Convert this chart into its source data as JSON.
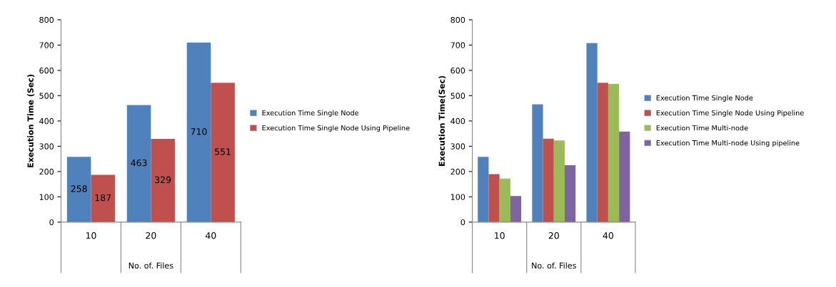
{
  "chart_data": [
    {
      "type": "bar",
      "xlabel": "No. of. Files",
      "ylabel": "Execution Time (Sec)",
      "categories": [
        "10",
        "20",
        "40"
      ],
      "series": [
        {
          "name": "Execution Time Single Node",
          "color": "#4f81bd",
          "values": [
            258,
            463,
            710
          ]
        },
        {
          "name": "Execution Time Single Node Using Pipeline",
          "color": "#c0504d",
          "values": [
            187,
            329,
            551
          ]
        }
      ],
      "ylim": [
        0,
        800
      ],
      "yticks": [
        0,
        100,
        200,
        300,
        400,
        500,
        600,
        700,
        800
      ],
      "data_labels": true,
      "legend": "right",
      "grid": false
    },
    {
      "type": "bar",
      "xlabel": "No. of. Files",
      "ylabel": "Execution Time(Sec)",
      "categories": [
        "10",
        "20",
        "40"
      ],
      "series": [
        {
          "name": "Execution Time Single Node",
          "color": "#4f81bd",
          "values": [
            258,
            466,
            708
          ]
        },
        {
          "name": "Execution Time Single Node Using Pipeline",
          "color": "#c0504d",
          "values": [
            190,
            330,
            551
          ]
        },
        {
          "name": "Execution Time Multi-node",
          "color": "#9bbb59",
          "values": [
            172,
            323,
            547
          ]
        },
        {
          "name": "Execution Time Multi-node Using pipeline",
          "color": "#8064a2",
          "values": [
            103,
            225,
            358
          ]
        }
      ],
      "ylim": [
        0,
        800
      ],
      "yticks": [
        0,
        100,
        200,
        300,
        400,
        500,
        600,
        700,
        800
      ],
      "legend": "right",
      "grid": false
    }
  ]
}
